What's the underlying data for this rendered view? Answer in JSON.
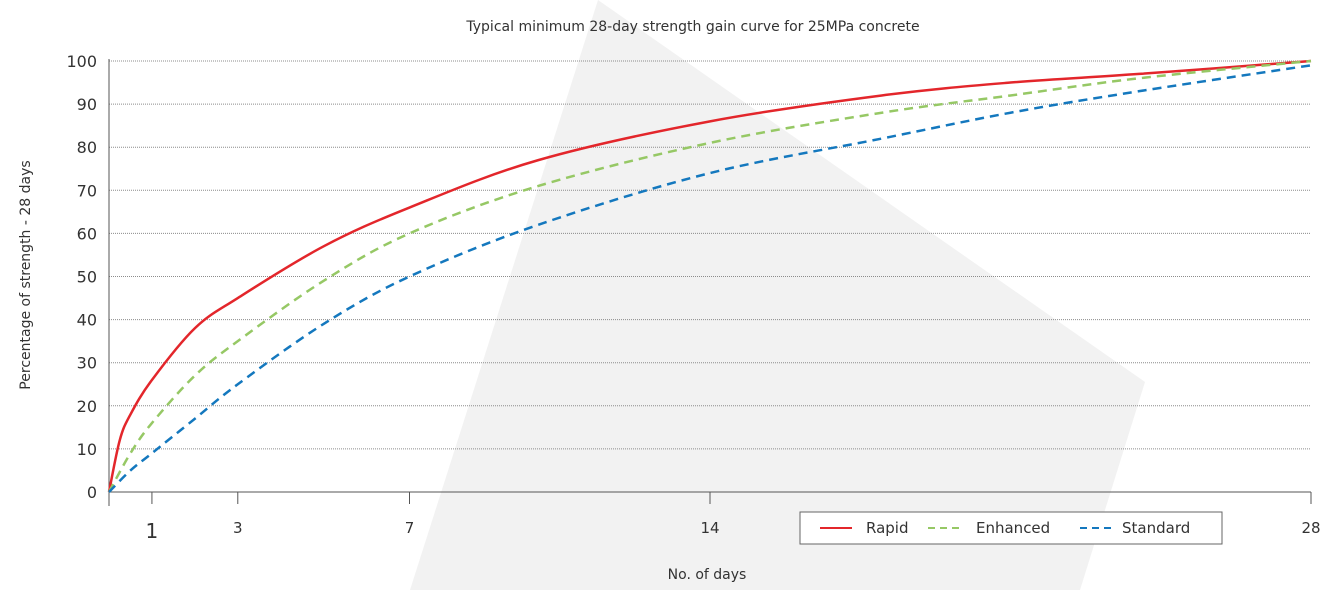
{
  "chart_data": {
    "type": "line",
    "title": "Typical minimum 28-day strength gain curve for 25MPa concrete",
    "xlabel": "No. of days",
    "ylabel": "Percentage of strength - 28 days",
    "xlim": [
      0,
      28
    ],
    "ylim": [
      0,
      100
    ],
    "x_ticks": [
      1,
      3,
      7,
      14,
      28
    ],
    "y_ticks": [
      0,
      10,
      20,
      30,
      40,
      50,
      60,
      70,
      80,
      90,
      100
    ],
    "grid": "horizontal",
    "legend_position": "bottom-right",
    "series": [
      {
        "name": "Rapid",
        "color": "#e3262b",
        "dash": "solid",
        "x": [
          0,
          0.25,
          0.5,
          1,
          2,
          3,
          5,
          7,
          10,
          14,
          18,
          21,
          24,
          28
        ],
        "y": [
          0,
          12,
          18,
          26,
          38,
          45,
          57,
          66,
          77,
          86,
          92,
          95,
          97,
          100
        ]
      },
      {
        "name": "Enhanced",
        "color": "#96c865",
        "dash": "dashed",
        "x": [
          0,
          0.5,
          1,
          2,
          3,
          5,
          7,
          10,
          14,
          18,
          21,
          24,
          28
        ],
        "y": [
          0,
          9,
          16,
          27,
          35,
          49,
          60,
          71,
          81,
          88,
          92,
          96,
          100
        ]
      },
      {
        "name": "Standard",
        "color": "#1478be",
        "dash": "dashed",
        "x": [
          0,
          0.5,
          1,
          2,
          3,
          5,
          7,
          10,
          14,
          18,
          21,
          24,
          28
        ],
        "y": [
          0,
          5,
          9,
          17,
          25,
          39,
          50,
          62,
          74,
          82,
          88,
          93,
          99
        ]
      }
    ]
  }
}
